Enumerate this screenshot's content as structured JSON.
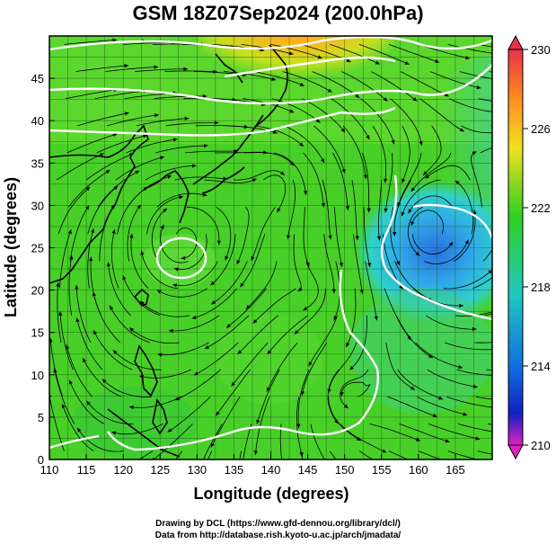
{
  "title": "GSM 18Z07Sep2024 (200.0hPa)",
  "xlabel": "Longitude (degrees)",
  "ylabel": "Latitude  (degrees)",
  "x_ticks": [
    "110",
    "115",
    "120",
    "125",
    "130",
    "135",
    "140",
    "145",
    "150",
    "155",
    "160",
    "165"
  ],
  "y_ticks": [
    "0",
    "5",
    "10",
    "15",
    "20",
    "25",
    "30",
    "35",
    "40",
    "45"
  ],
  "colorbar_ticks": [
    "230",
    "226",
    "222",
    "218",
    "214",
    "210"
  ],
  "colorbar_colors": [
    "#e8304a",
    "#ff8a20",
    "#f0e020",
    "#30d020",
    "#20c8c0",
    "#1070e0",
    "#1020c0",
    "#e020c0"
  ],
  "credit_line1": "Drawing by DCL (https://www.gfd-dennou.org/library/dcl/)",
  "credit_line2": "Data from http://database.rish.kyoto-u.ac.jp/arch/jmadata/"
}
